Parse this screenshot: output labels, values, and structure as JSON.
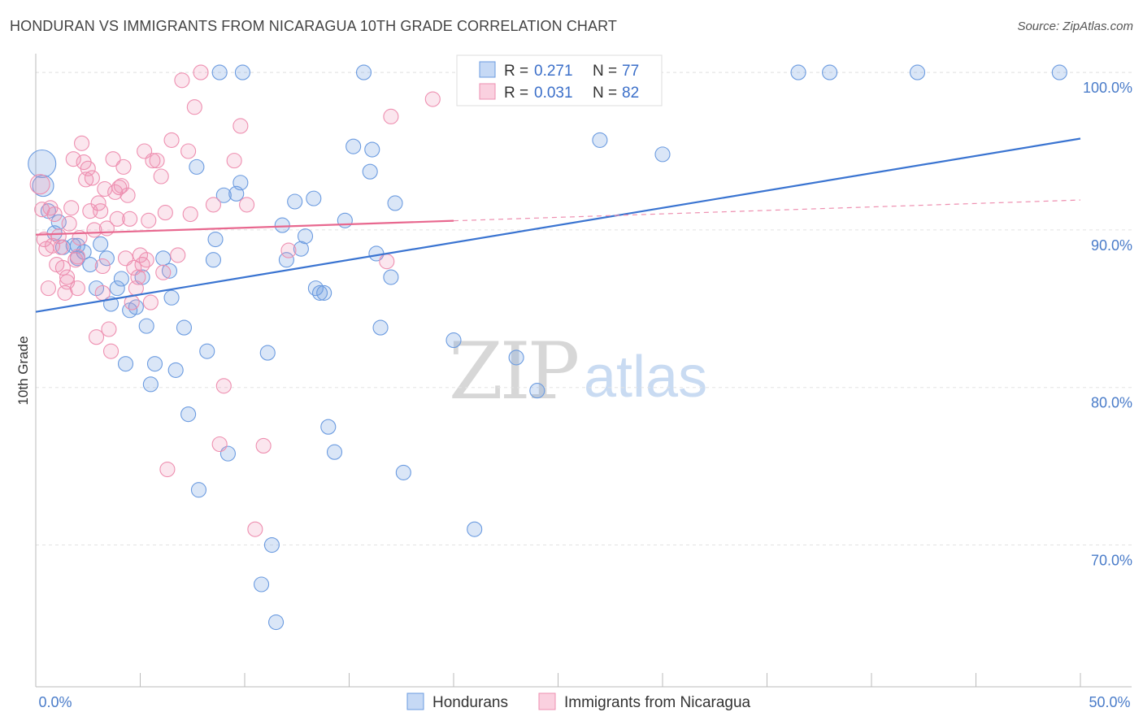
{
  "header": {
    "title": "HONDURAN VS IMMIGRANTS FROM NICARAGUA 10TH GRADE CORRELATION CHART",
    "source": "Source: ZipAtlas.com"
  },
  "watermark": {
    "zip": "ZIP",
    "atlas": "atlas"
  },
  "legend": {
    "r_label": "R =",
    "n_label": "N =",
    "rows": [
      {
        "r": "0.271",
        "n": "77",
        "color": "#6b9be0"
      },
      {
        "r": "0.031",
        "n": "82",
        "color": "#ee8fb0"
      }
    ]
  },
  "bottom_legend": {
    "items": [
      "Hondurans",
      "Immigrants from Nicaragua"
    ]
  },
  "chart_data": {
    "type": "scatter",
    "title": "HONDURAN VS IMMIGRANTS FROM NICARAGUA 10TH GRADE CORRELATION CHART",
    "xlabel": "",
    "ylabel": "10th Grade",
    "xlim": [
      0,
      50
    ],
    "ylim": [
      61,
      101.5
    ],
    "x_tick_labels": [
      "0.0%",
      "50.0%"
    ],
    "y_ticks": [
      70,
      80,
      90,
      100
    ],
    "y_tick_labels": [
      "70.0%",
      "80.0%",
      "90.0%",
      "100.0%"
    ],
    "grid": true,
    "series": [
      {
        "name": "Hondurans",
        "color": "#6b9be0",
        "r": 0.271,
        "n": 77,
        "trend": {
          "x": [
            0,
            50
          ],
          "y": [
            84.8,
            95.8
          ]
        },
        "points": [
          [
            0.3,
            94.2
          ],
          [
            0.35,
            92.8
          ],
          [
            0.6,
            91.2
          ],
          [
            0.9,
            89.8
          ],
          [
            1.1,
            90.5
          ],
          [
            1.3,
            88.9
          ],
          [
            1.8,
            89.0
          ],
          [
            2.0,
            88.2
          ],
          [
            2.3,
            88.6
          ],
          [
            2.6,
            87.8
          ],
          [
            2.9,
            86.3
          ],
          [
            3.1,
            89.1
          ],
          [
            3.4,
            88.2
          ],
          [
            3.6,
            85.3
          ],
          [
            3.9,
            86.3
          ],
          [
            4.1,
            86.9
          ],
          [
            4.3,
            81.5
          ],
          [
            4.5,
            84.9
          ],
          [
            4.8,
            85.1
          ],
          [
            5.1,
            87.0
          ],
          [
            5.3,
            83.9
          ],
          [
            5.5,
            80.2
          ],
          [
            5.7,
            81.5
          ],
          [
            6.1,
            88.2
          ],
          [
            6.4,
            87.4
          ],
          [
            6.5,
            85.7
          ],
          [
            6.7,
            81.1
          ],
          [
            7.1,
            83.8
          ],
          [
            7.3,
            78.3
          ],
          [
            7.7,
            94.0
          ],
          [
            7.8,
            73.5
          ],
          [
            8.2,
            82.3
          ],
          [
            8.5,
            88.1
          ],
          [
            8.6,
            89.4
          ],
          [
            8.8,
            100.0
          ],
          [
            9.0,
            92.2
          ],
          [
            9.2,
            75.8
          ],
          [
            9.6,
            92.3
          ],
          [
            9.8,
            93.0
          ],
          [
            9.9,
            100.0
          ],
          [
            10.8,
            67.5
          ],
          [
            11.1,
            82.2
          ],
          [
            11.3,
            70.0
          ],
          [
            11.5,
            65.1
          ],
          [
            11.8,
            90.3
          ],
          [
            12.0,
            88.1
          ],
          [
            12.4,
            91.8
          ],
          [
            12.7,
            88.8
          ],
          [
            12.9,
            89.6
          ],
          [
            13.3,
            92.0
          ],
          [
            13.4,
            86.3
          ],
          [
            13.6,
            86.0
          ],
          [
            13.8,
            86.0
          ],
          [
            14.0,
            77.5
          ],
          [
            14.3,
            75.9
          ],
          [
            14.8,
            90.6
          ],
          [
            15.2,
            95.3
          ],
          [
            15.7,
            100.0
          ],
          [
            16.0,
            93.7
          ],
          [
            16.1,
            95.1
          ],
          [
            16.3,
            88.5
          ],
          [
            16.5,
            83.8
          ],
          [
            17.0,
            87.0
          ],
          [
            17.2,
            91.7
          ],
          [
            17.6,
            74.6
          ],
          [
            20.0,
            83.0
          ],
          [
            21.0,
            71.0
          ],
          [
            23.0,
            81.9
          ],
          [
            24.0,
            79.8
          ],
          [
            27.0,
            95.7
          ],
          [
            28.0,
            100.0
          ],
          [
            30.0,
            94.8
          ],
          [
            36.5,
            100.0
          ],
          [
            38.0,
            100.0
          ],
          [
            42.2,
            100.0
          ],
          [
            49.0,
            100.0
          ],
          [
            2.0,
            89.0
          ]
        ]
      },
      {
        "name": "Immigrants from Nicaragua",
        "color": "#ee8fb0",
        "r": 0.031,
        "n": 82,
        "trend": {
          "x": [
            0,
            50
          ],
          "y": [
            89.7,
            91.9
          ],
          "solid_until_x": 20
        },
        "points": [
          [
            0.2,
            92.9
          ],
          [
            0.3,
            91.3
          ],
          [
            0.4,
            89.4
          ],
          [
            0.5,
            88.8
          ],
          [
            0.6,
            86.3
          ],
          [
            0.7,
            91.4
          ],
          [
            0.8,
            89.0
          ],
          [
            0.9,
            91.0
          ],
          [
            1.0,
            87.8
          ],
          [
            1.1,
            89.6
          ],
          [
            1.2,
            88.9
          ],
          [
            1.3,
            87.6
          ],
          [
            1.4,
            86.0
          ],
          [
            1.5,
            86.7
          ],
          [
            1.6,
            90.4
          ],
          [
            1.7,
            91.4
          ],
          [
            1.8,
            94.5
          ],
          [
            1.9,
            88.1
          ],
          [
            2.0,
            86.3
          ],
          [
            2.1,
            89.5
          ],
          [
            2.2,
            95.5
          ],
          [
            2.3,
            94.3
          ],
          [
            2.4,
            93.2
          ],
          [
            2.5,
            93.9
          ],
          [
            2.6,
            91.2
          ],
          [
            2.7,
            93.3
          ],
          [
            2.8,
            90.0
          ],
          [
            2.9,
            83.2
          ],
          [
            3.0,
            91.7
          ],
          [
            3.1,
            91.2
          ],
          [
            3.2,
            87.7
          ],
          [
            3.3,
            92.6
          ],
          [
            3.4,
            90.1
          ],
          [
            3.5,
            83.7
          ],
          [
            3.6,
            82.3
          ],
          [
            3.7,
            94.5
          ],
          [
            3.8,
            92.4
          ],
          [
            3.9,
            90.7
          ],
          [
            4.0,
            92.7
          ],
          [
            4.1,
            92.8
          ],
          [
            4.2,
            94.0
          ],
          [
            4.3,
            88.2
          ],
          [
            4.4,
            92.2
          ],
          [
            4.5,
            90.7
          ],
          [
            4.6,
            85.4
          ],
          [
            4.7,
            87.6
          ],
          [
            4.9,
            87.0
          ],
          [
            5.0,
            88.4
          ],
          [
            5.1,
            87.8
          ],
          [
            5.2,
            95.0
          ],
          [
            5.3,
            88.1
          ],
          [
            5.4,
            90.6
          ],
          [
            5.5,
            85.4
          ],
          [
            5.6,
            94.4
          ],
          [
            5.8,
            94.4
          ],
          [
            6.0,
            93.4
          ],
          [
            6.1,
            87.3
          ],
          [
            6.2,
            91.1
          ],
          [
            6.3,
            74.8
          ],
          [
            6.5,
            95.7
          ],
          [
            6.8,
            88.4
          ],
          [
            7.0,
            99.5
          ],
          [
            7.3,
            95.0
          ],
          [
            7.4,
            91.0
          ],
          [
            7.6,
            97.8
          ],
          [
            7.9,
            100.0
          ],
          [
            8.5,
            91.6
          ],
          [
            8.8,
            76.4
          ],
          [
            9.0,
            80.1
          ],
          [
            9.5,
            94.4
          ],
          [
            9.8,
            96.6
          ],
          [
            10.1,
            91.6
          ],
          [
            10.5,
            71.0
          ],
          [
            10.9,
            76.3
          ],
          [
            12.1,
            88.7
          ],
          [
            16.8,
            88.0
          ],
          [
            17.0,
            97.2
          ],
          [
            19.0,
            98.3
          ],
          [
            2.0,
            88.3
          ],
          [
            3.2,
            86.0
          ],
          [
            1.5,
            87.0
          ],
          [
            4.8,
            86.3
          ]
        ]
      }
    ]
  }
}
